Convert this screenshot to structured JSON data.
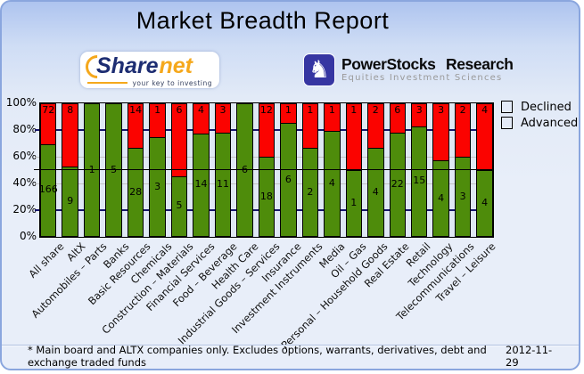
{
  "page": {
    "title": "Market Breadth Report",
    "footnote": "* Main board and ALTX companies only. Excludes options, warrants, derivatives, debt and exchange traded funds",
    "date": "2012-11-29"
  },
  "logos": {
    "sharenet": {
      "word_part1": "Share",
      "word_part2": "net",
      "tagline": "your key to investing",
      "icon": "orange-arc-icon"
    },
    "powerstocks": {
      "name": "PowerStocks Research",
      "tagline": "Equities Investment Sciences",
      "icon": "chess-knight-icon",
      "icon_glyph": "♞",
      "icon_bg": "#3636a2"
    }
  },
  "legend": {
    "items": [
      {
        "label": "Declined",
        "color": "#fb0300"
      },
      {
        "label": "Advanced",
        "color": "#4e8c0b"
      }
    ]
  },
  "colors": {
    "declined": "#fb0300",
    "advanced": "#4e8c0b",
    "grid_navy": "#16166b",
    "grid_gray": "#c3c3c3",
    "half_line": "#000000"
  },
  "chart_data": {
    "type": "bar",
    "stacked": true,
    "title": "Market Breadth Report",
    "unit": "percent of companies (stacked to 100%)",
    "categories": [
      "All share",
      "AltX",
      "Automobiles – Parts",
      "Banks",
      "Basic Resources",
      "Chemicals",
      "Construction – Materials",
      "Financial Services",
      "Food – Beverage",
      "Health Care",
      "Industrial Goods – Services",
      "Insurance",
      "Investment Instruments",
      "Media",
      "Oil – Gas",
      "Personal – Household Goods",
      "Real Estate",
      "Retail",
      "Technology",
      "Telecommunications",
      "Travel – Leisure"
    ],
    "series": [
      {
        "name": "Declined",
        "color": "#fb0300",
        "values": [
          72,
          8,
          0,
          0,
          14,
          1,
          6,
          4,
          3,
          0,
          12,
          1,
          1,
          1,
          1,
          2,
          6,
          3,
          3,
          2,
          4
        ]
      },
      {
        "name": "Advanced",
        "color": "#4e8c0b",
        "values": [
          166,
          9,
          1,
          5,
          28,
          3,
          5,
          14,
          11,
          6,
          18,
          6,
          2,
          4,
          1,
          4,
          22,
          15,
          4,
          3,
          4
        ]
      }
    ],
    "y_ticks": [
      "100%",
      "80%",
      "60%",
      "40%",
      "20%",
      "0%"
    ],
    "ylim": [
      0,
      100
    ],
    "grid": "horizontal lines at 20/40/60/80%, navy at 20% and 80%, gray at 40% and 60%",
    "reference_line": "solid black line at 50%",
    "bar_labels": "company counts shown inside segments",
    "legend_position": "top-right"
  }
}
